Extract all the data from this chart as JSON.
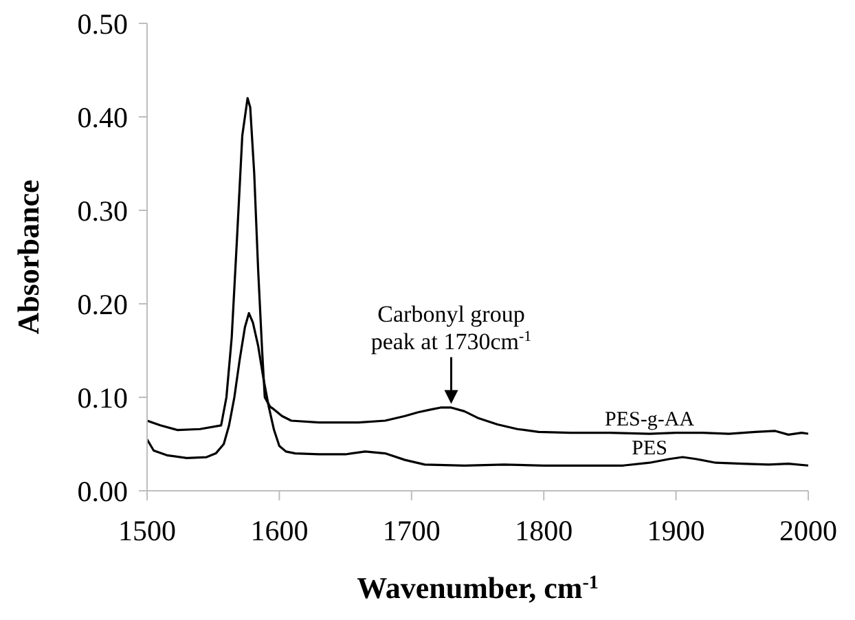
{
  "chart_data": {
    "type": "line",
    "xlabel": "Wavenumber, cm$^{-1}$",
    "ylabel": "Absorbance",
    "xlim": [
      1500,
      2000
    ],
    "xticks": [
      1500,
      1600,
      1700,
      1800,
      1900,
      2000
    ],
    "ylim": [
      0,
      0.5
    ],
    "yticks": [
      {
        "value": 0,
        "label": "0.00"
      },
      {
        "value": 0.1,
        "label": "0.10"
      },
      {
        "value": 0.2,
        "label": "0.20"
      },
      {
        "value": 0.3,
        "label": "0.30"
      },
      {
        "value": 0.4,
        "label": "0.40"
      },
      {
        "value": 0.5,
        "label": "0.50"
      }
    ],
    "grid": false,
    "marker": "none",
    "line_style": "solid",
    "annotations": [
      {
        "text": "Carbonyl group peak at 1730cm$^{-1}$",
        "x": 1730,
        "y": 0.09
      }
    ],
    "series": [
      {
        "name": "PES-g-AA",
        "color": "#000000",
        "x": [
          1500,
          1510,
          1523,
          1540,
          1556,
          1560,
          1564,
          1568,
          1572,
          1576,
          1578,
          1581,
          1584,
          1587,
          1589,
          1593,
          1596,
          1602,
          1609,
          1630,
          1660,
          1680,
          1695,
          1705,
          1715,
          1722,
          1730,
          1740,
          1750,
          1765,
          1780,
          1796,
          1820,
          1850,
          1880,
          1900,
          1920,
          1940,
          1960,
          1975,
          1985,
          1995,
          2000
        ],
        "values": [
          0.075,
          0.07,
          0.065,
          0.066,
          0.07,
          0.1,
          0.164,
          0.27,
          0.38,
          0.42,
          0.41,
          0.34,
          0.236,
          0.15,
          0.1,
          0.09,
          0.087,
          0.08,
          0.075,
          0.073,
          0.073,
          0.075,
          0.08,
          0.084,
          0.087,
          0.089,
          0.089,
          0.085,
          0.078,
          0.071,
          0.066,
          0.063,
          0.062,
          0.062,
          0.061,
          0.062,
          0.062,
          0.061,
          0.063,
          0.064,
          0.06,
          0.062,
          0.061
        ]
      },
      {
        "name": "PES",
        "color": "#000000",
        "x": [
          1500,
          1505,
          1515,
          1530,
          1545,
          1552,
          1558,
          1562,
          1566,
          1570,
          1574,
          1577,
          1580,
          1584,
          1588,
          1592,
          1596,
          1600,
          1605,
          1612,
          1630,
          1650,
          1665,
          1680,
          1695,
          1710,
          1740,
          1770,
          1800,
          1830,
          1860,
          1880,
          1895,
          1905,
          1915,
          1930,
          1950,
          1970,
          1985,
          2000
        ],
        "values": [
          0.055,
          0.043,
          0.038,
          0.035,
          0.036,
          0.04,
          0.05,
          0.07,
          0.1,
          0.14,
          0.175,
          0.19,
          0.18,
          0.155,
          0.12,
          0.09,
          0.065,
          0.048,
          0.042,
          0.04,
          0.039,
          0.039,
          0.042,
          0.04,
          0.033,
          0.028,
          0.027,
          0.028,
          0.027,
          0.027,
          0.027,
          0.03,
          0.034,
          0.036,
          0.034,
          0.03,
          0.029,
          0.028,
          0.029,
          0.027
        ]
      }
    ]
  }
}
